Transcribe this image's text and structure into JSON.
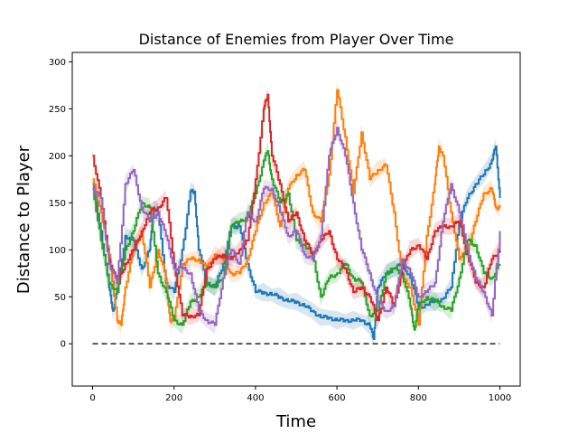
{
  "chart_data": {
    "type": "line",
    "title": "Distance of Enemies from Player Over Time",
    "xlabel": "Time",
    "ylabel": "Distance to Player",
    "xlim": [
      -50,
      1050
    ],
    "ylim": [
      -45,
      310
    ],
    "xticks": [
      0,
      200,
      400,
      600,
      800,
      1000
    ],
    "yticks": [
      0,
      50,
      100,
      150,
      200,
      250,
      300
    ],
    "grid": false,
    "legend": "none",
    "reference_line": {
      "y": 0,
      "x_range": [
        0,
        1000
      ],
      "style": "dashed",
      "color": "#333333"
    },
    "series": [
      {
        "color": "#1f77b4",
        "x": [
          0,
          20,
          40,
          50,
          60,
          80,
          100,
          120,
          140,
          150,
          160,
          180,
          200,
          220,
          240,
          250,
          260,
          280,
          300,
          320,
          340,
          350,
          360,
          380,
          400,
          420,
          440,
          460,
          480,
          500,
          520,
          540,
          560,
          580,
          600,
          620,
          640,
          660,
          680,
          690,
          700,
          720,
          740,
          760,
          780,
          800,
          820,
          840,
          860,
          880,
          900,
          920,
          940,
          960,
          980,
          990,
          1000
        ],
        "y": [
          170,
          120,
          60,
          35,
          55,
          115,
          110,
          80,
          100,
          145,
          140,
          65,
          55,
          100,
          162,
          162,
          100,
          65,
          60,
          85,
          125,
          125,
          125,
          85,
          55,
          55,
          52,
          50,
          45,
          45,
          40,
          35,
          28,
          28,
          25,
          25,
          25,
          25,
          20,
          5,
          60,
          75,
          80,
          85,
          70,
          38,
          42,
          45,
          48,
          60,
          130,
          155,
          170,
          180,
          195,
          210,
          155
        ]
      },
      {
        "color": "#ff7f0e",
        "x": [
          0,
          20,
          40,
          60,
          70,
          80,
          100,
          120,
          140,
          160,
          180,
          190,
          200,
          220,
          240,
          260,
          280,
          300,
          320,
          340,
          360,
          380,
          400,
          420,
          440,
          460,
          480,
          500,
          520,
          540,
          560,
          580,
          600,
          620,
          640,
          660,
          680,
          700,
          720,
          740,
          760,
          780,
          800,
          820,
          840,
          850,
          860,
          880,
          900,
          920,
          940,
          960,
          980,
          990,
          1000
        ],
        "y": [
          175,
          140,
          95,
          25,
          20,
          60,
          100,
          120,
          60,
          100,
          70,
          25,
          25,
          85,
          90,
          90,
          80,
          95,
          90,
          75,
          75,
          90,
          120,
          150,
          160,
          125,
          165,
          180,
          185,
          140,
          130,
          180,
          270,
          220,
          160,
          225,
          175,
          185,
          190,
          140,
          70,
          60,
          20,
          115,
          170,
          210,
          200,
          140,
          90,
          100,
          130,
          160,
          165,
          145,
          145
        ]
      },
      {
        "color": "#2ca02c",
        "x": [
          0,
          20,
          40,
          60,
          80,
          100,
          120,
          140,
          160,
          180,
          200,
          220,
          240,
          260,
          280,
          300,
          320,
          340,
          360,
          380,
          400,
          420,
          430,
          440,
          460,
          480,
          500,
          520,
          540,
          560,
          580,
          600,
          620,
          640,
          660,
          680,
          700,
          720,
          740,
          760,
          780,
          790,
          800,
          820,
          840,
          860,
          880,
          900,
          920,
          940,
          960,
          980,
          1000
        ],
        "y": [
          165,
          110,
          65,
          55,
          100,
          120,
          150,
          145,
          75,
          55,
          25,
          20,
          45,
          50,
          65,
          60,
          70,
          125,
          130,
          135,
          160,
          195,
          205,
          175,
          150,
          160,
          110,
          105,
          95,
          50,
          70,
          75,
          85,
          70,
          65,
          30,
          35,
          75,
          80,
          75,
          40,
          15,
          40,
          50,
          45,
          40,
          35,
          70,
          110,
          105,
          75,
          70,
          85
        ]
      },
      {
        "color": "#d62728",
        "x": [
          0,
          20,
          40,
          60,
          80,
          100,
          120,
          140,
          160,
          180,
          200,
          220,
          240,
          260,
          280,
          300,
          320,
          340,
          360,
          380,
          400,
          420,
          430,
          440,
          460,
          480,
          500,
          520,
          540,
          560,
          580,
          600,
          620,
          640,
          660,
          680,
          700,
          720,
          740,
          760,
          780,
          800,
          820,
          840,
          860,
          880,
          900,
          920,
          940,
          960,
          980,
          1000
        ],
        "y": [
          200,
          155,
          90,
          65,
          85,
          100,
          120,
          140,
          145,
          155,
          85,
          30,
          30,
          30,
          80,
          90,
          95,
          90,
          100,
          110,
          175,
          250,
          265,
          200,
          170,
          130,
          140,
          110,
          95,
          110,
          120,
          90,
          80,
          55,
          60,
          50,
          25,
          60,
          40,
          80,
          100,
          105,
          90,
          120,
          125,
          125,
          130,
          95,
          65,
          60,
          90,
          100
        ]
      },
      {
        "color": "#9467bd",
        "x": [
          0,
          20,
          40,
          60,
          80,
          100,
          120,
          140,
          160,
          180,
          200,
          220,
          240,
          260,
          280,
          300,
          320,
          340,
          360,
          380,
          400,
          420,
          440,
          460,
          480,
          500,
          520,
          540,
          560,
          580,
          600,
          620,
          640,
          660,
          680,
          700,
          720,
          740,
          760,
          780,
          800,
          820,
          840,
          860,
          880,
          900,
          920,
          940,
          960,
          980,
          1000
        ],
        "y": [
          165,
          155,
          85,
          65,
          170,
          185,
          145,
          130,
          140,
          115,
          80,
          80,
          75,
          35,
          25,
          20,
          70,
          100,
          85,
          140,
          130,
          165,
          165,
          140,
          115,
          120,
          95,
          90,
          115,
          200,
          230,
          200,
          150,
          100,
          75,
          45,
          35,
          40,
          90,
          75,
          50,
          55,
          65,
          130,
          170,
          140,
          100,
          70,
          55,
          30,
          120
        ]
      }
    ]
  }
}
